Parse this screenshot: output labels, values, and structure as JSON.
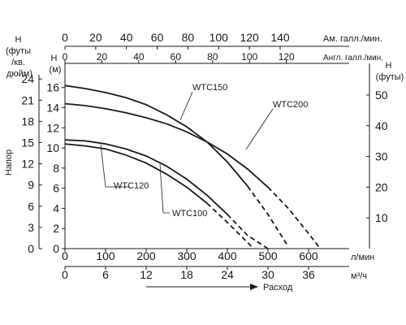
{
  "chart_data": {
    "type": "line",
    "axes": {
      "bottom_primary": {
        "label": "л/мин",
        "ticks": [
          "0",
          "100",
          "200",
          "300",
          "400",
          "500",
          "600"
        ],
        "range": [
          0,
          700
        ]
      },
      "bottom_secondary": {
        "label": "м³/ч",
        "ticks": [
          "0",
          "6",
          "12",
          "18",
          "24",
          "30",
          "36"
        ],
        "range": [
          0,
          42
        ]
      },
      "flow_title": "Расход",
      "top_primary": {
        "label": "Ам. галл./мин.",
        "ticks": [
          "0",
          "20",
          "40",
          "60",
          "80",
          "100",
          "120",
          "140"
        ],
        "range": [
          0,
          184.9
        ]
      },
      "top_secondary": {
        "label": "Англ. галл./мин.",
        "ticks": [
          "0",
          "20",
          "40",
          "60",
          "80",
          "100",
          "120"
        ],
        "range": [
          0,
          154
        ]
      },
      "left_outer": {
        "label": "Н (футы /кв. дюйм)",
        "ticks": [
          "0",
          "3",
          "6",
          "9",
          "12",
          "15",
          "18",
          "21",
          "24"
        ],
        "range": [
          0,
          26.2
        ]
      },
      "left_inner": {
        "label": "Н (м)",
        "ticks": [
          "0",
          "2",
          "4",
          "6",
          "8",
          "10",
          "12",
          "14",
          "16"
        ],
        "range": [
          0,
          18.4
        ]
      },
      "head_title": "Напор",
      "right": {
        "label": "Н (футы)",
        "ticks": [
          "10",
          "20",
          "30",
          "40",
          "50"
        ],
        "range": [
          0,
          60.3
        ]
      }
    },
    "grid": false,
    "series": [
      {
        "name": "WTC150",
        "x_lpm": [
          0,
          50,
          100,
          150,
          200,
          250,
          300,
          350,
          400,
          450,
          500,
          550
        ],
        "head_m": [
          16.2,
          15.9,
          15.5,
          15.0,
          14.3,
          13.3,
          12.1,
          10.6,
          8.6,
          6.2,
          3.4,
          0.2
        ],
        "solid_until_lpm": 450
      },
      {
        "name": "WTC200",
        "x_lpm": [
          0,
          50,
          100,
          150,
          200,
          250,
          300,
          350,
          400,
          450,
          500,
          550,
          600,
          625
        ],
        "head_m": [
          14.4,
          14.2,
          13.9,
          13.5,
          13.0,
          12.4,
          11.6,
          10.6,
          9.4,
          7.9,
          6.1,
          4.0,
          1.5,
          0.2
        ],
        "solid_until_lpm": 500
      },
      {
        "name": "WTC120",
        "x_lpm": [
          0,
          50,
          100,
          150,
          200,
          250,
          300,
          350,
          400,
          450,
          500
        ],
        "head_m": [
          10.8,
          10.7,
          10.4,
          9.9,
          9.2,
          8.2,
          6.9,
          5.3,
          3.4,
          1.3,
          0.0
        ],
        "solid_until_lpm": 400
      },
      {
        "name": "WTC100",
        "x_lpm": [
          0,
          50,
          100,
          150,
          200,
          250,
          300,
          350,
          400,
          450,
          465
        ],
        "head_m": [
          10.4,
          10.2,
          9.9,
          9.3,
          8.5,
          7.4,
          6.1,
          4.5,
          2.6,
          0.6,
          0.0
        ],
        "solid_until_lpm": 350
      }
    ]
  }
}
